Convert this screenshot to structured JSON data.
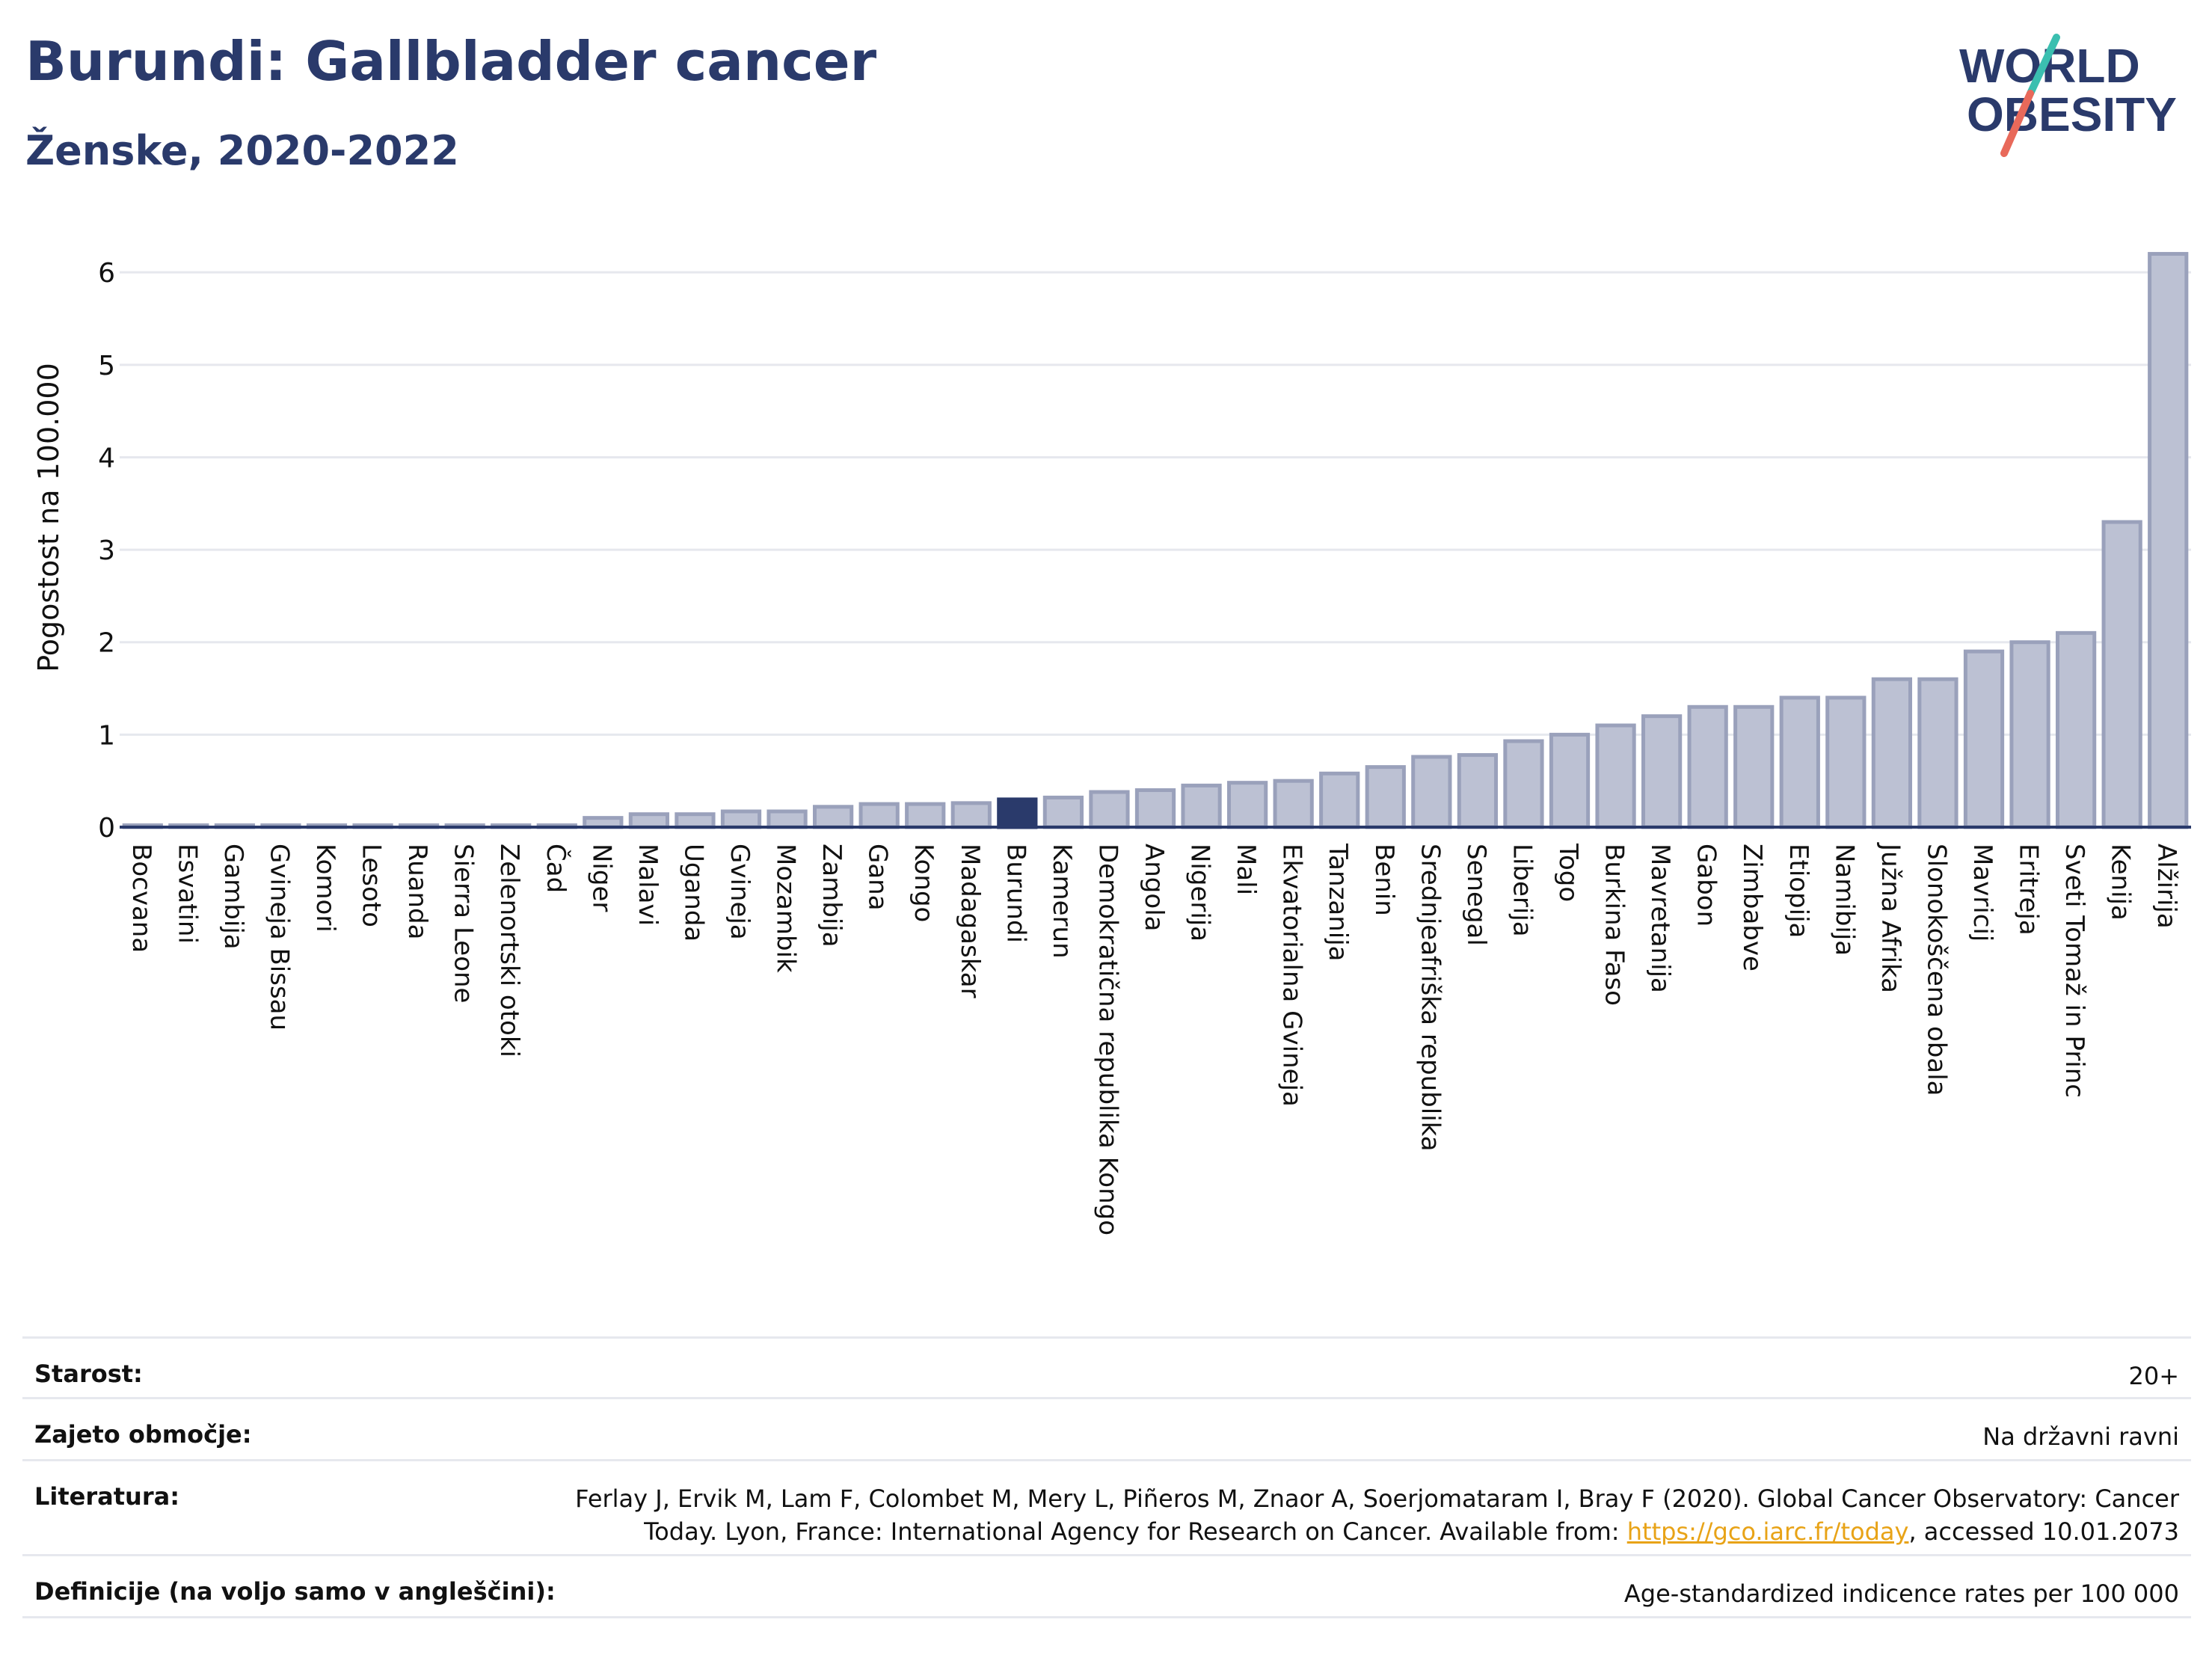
{
  "header": {
    "title": "Burundi: Gallbladder cancer",
    "subtitle": "Ženske, 2020-2022"
  },
  "logo": {
    "line1": "WORLD",
    "line2": "OBESITY",
    "colors": {
      "text": "#2a3a6b",
      "slash_top": "#3bbfb0",
      "slash_bottom": "#e8695a"
    }
  },
  "chart_data": {
    "type": "bar",
    "ylabel": "Pogostost na 100.000",
    "xlabel": "",
    "ylim": [
      0,
      6.6
    ],
    "yticks": [
      0,
      1,
      2,
      3,
      4,
      5,
      6
    ],
    "grid": true,
    "highlight": "Burundi",
    "colors": {
      "bar": "#bcc1d3",
      "bar_edge": "#9aa1bb",
      "highlight": "#2a3a6b",
      "grid": "#e6e8ee",
      "axis": "#2a3a6b"
    },
    "categories": [
      "Bocvana",
      "Esvatini",
      "Gambija",
      "Gvineja Bissau",
      "Komori",
      "Lesoto",
      "Ruanda",
      "Sierra Leone",
      "Zelenortski otoki",
      "Čad",
      "Niger",
      "Malavi",
      "Uganda",
      "Gvineja",
      "Mozambik",
      "Zambija",
      "Gana",
      "Kongo",
      "Madagaskar",
      "Burundi",
      "Kamerun",
      "Demokratična republika Kongo",
      "Angola",
      "Nigerija",
      "Mali",
      "Ekvatorialna Gvineja",
      "Tanzanija",
      "Benin",
      "Srednjeafriška republika",
      "Senegal",
      "Liberija",
      "Togo",
      "Burkina Faso",
      "Mavretanija",
      "Gabon",
      "Zimbabve",
      "Etiopija",
      "Namibija",
      "Južna Afrika",
      "Slonokoščena obala",
      "Mavricij",
      "Eritreja",
      "Sveti Tomaž in Princ",
      "Kenija",
      "Alžirija"
    ],
    "values": [
      0.02,
      0.02,
      0.02,
      0.02,
      0.02,
      0.02,
      0.02,
      0.02,
      0.02,
      0.02,
      0.1,
      0.14,
      0.14,
      0.17,
      0.17,
      0.22,
      0.25,
      0.25,
      0.26,
      0.3,
      0.32,
      0.38,
      0.4,
      0.45,
      0.48,
      0.5,
      0.58,
      0.65,
      0.76,
      0.78,
      0.93,
      1.0,
      1.1,
      1.2,
      1.3,
      1.3,
      1.4,
      1.4,
      1.6,
      1.6,
      1.9,
      2.0,
      2.1,
      3.3,
      6.2
    ]
  },
  "info": [
    {
      "label": "Starost:",
      "value": "20+"
    },
    {
      "label": "Zajeto območje:",
      "value": "Na državni ravni"
    },
    {
      "label": "Literatura:",
      "value_line1": "Ferlay J, Ervik M, Lam F, Colombet M, Mery L, Piñeros M, Znaor A, Soerjomataram I, Bray F (2020). Global Cancer Observatory: Cancer",
      "value_line2_pre": "Today. Lyon, France: International Agency for Research on Cancer. Available from: ",
      "link": "https://gco.iarc.fr/today",
      "value_line2_post": ", accessed 10.01.2073"
    },
    {
      "label": "Definicije (na voljo samo v angleščini):",
      "value": "Age-standardized indicence rates per 100 000"
    }
  ]
}
